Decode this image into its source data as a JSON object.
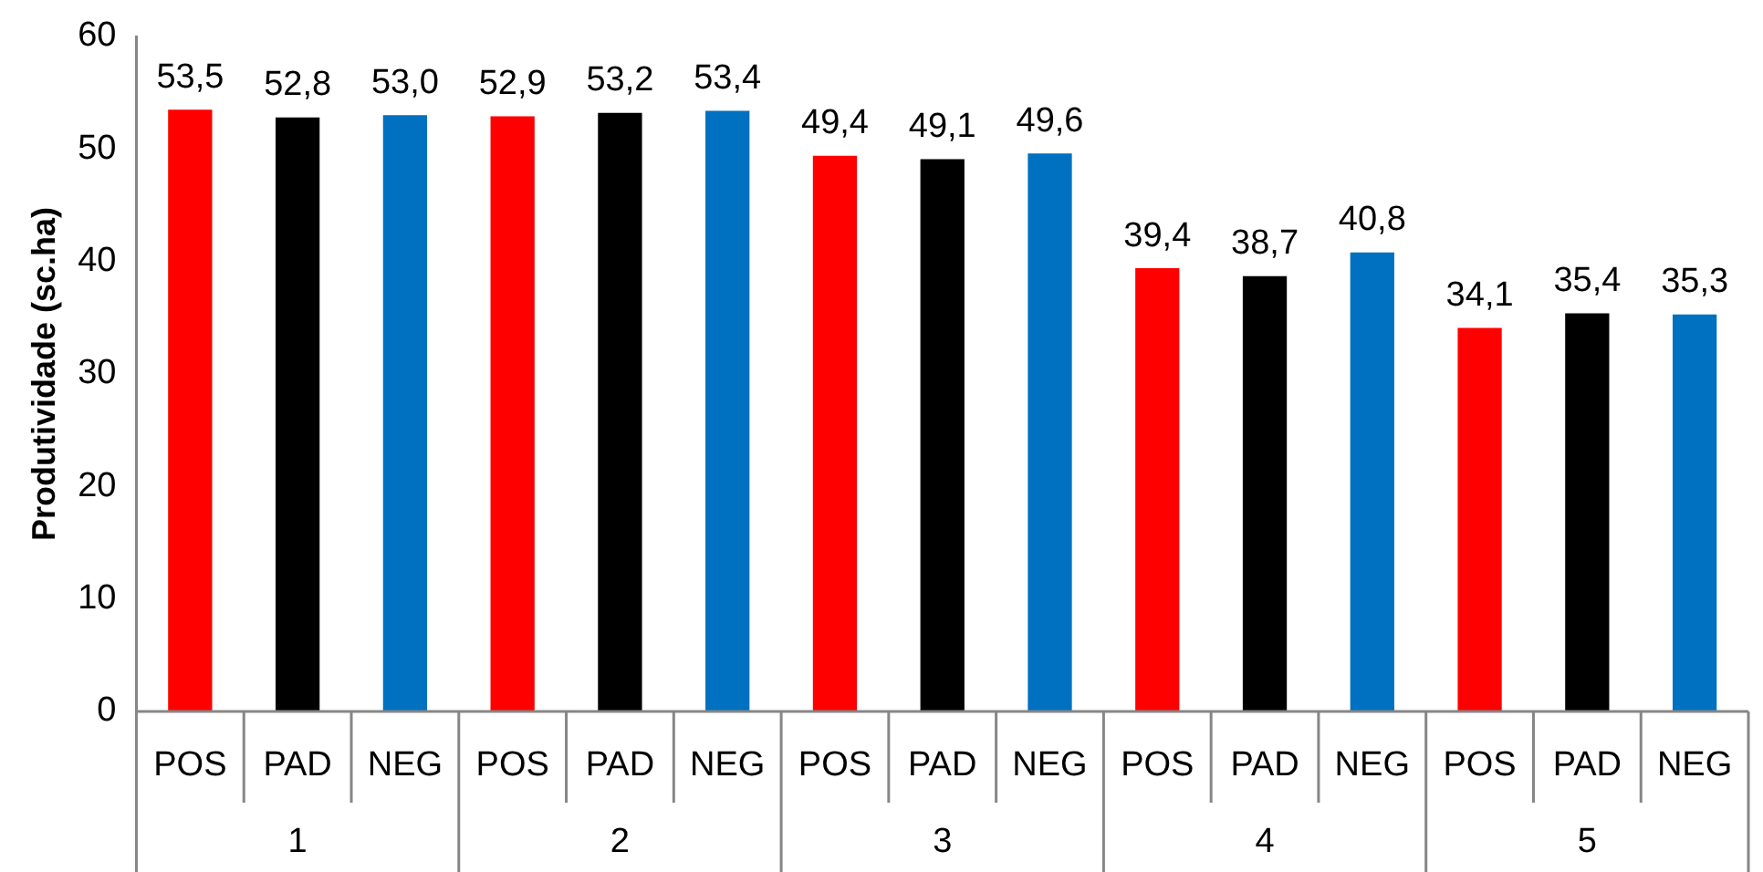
{
  "chart_data": {
    "type": "bar",
    "ylabel": "Produtividade (sc.ha)",
    "categories": [
      "1",
      "2",
      "3",
      "4",
      "5"
    ],
    "series": [
      {
        "name": "POS",
        "color": "#ff0000",
        "values": [
          53.5,
          52.9,
          49.4,
          39.4,
          34.1
        ],
        "value_labels": [
          "53,5",
          "52,9",
          "49,4",
          "39,4",
          "34,1"
        ]
      },
      {
        "name": "PAD",
        "color": "#000000",
        "values": [
          52.8,
          53.2,
          49.1,
          38.7,
          35.4
        ],
        "value_labels": [
          "52,8",
          "53,2",
          "49,1",
          "38,7",
          "35,4"
        ]
      },
      {
        "name": "NEG",
        "color": "#0070c0",
        "values": [
          53.0,
          53.4,
          49.6,
          40.8,
          35.3
        ],
        "value_labels": [
          "53,0",
          "53,4",
          "49,6",
          "40,8",
          "35,3"
        ]
      }
    ],
    "ylim": [
      0,
      60
    ],
    "yticks": [
      0,
      10,
      20,
      30,
      40,
      50,
      60
    ],
    "grid": false,
    "legend": false
  }
}
